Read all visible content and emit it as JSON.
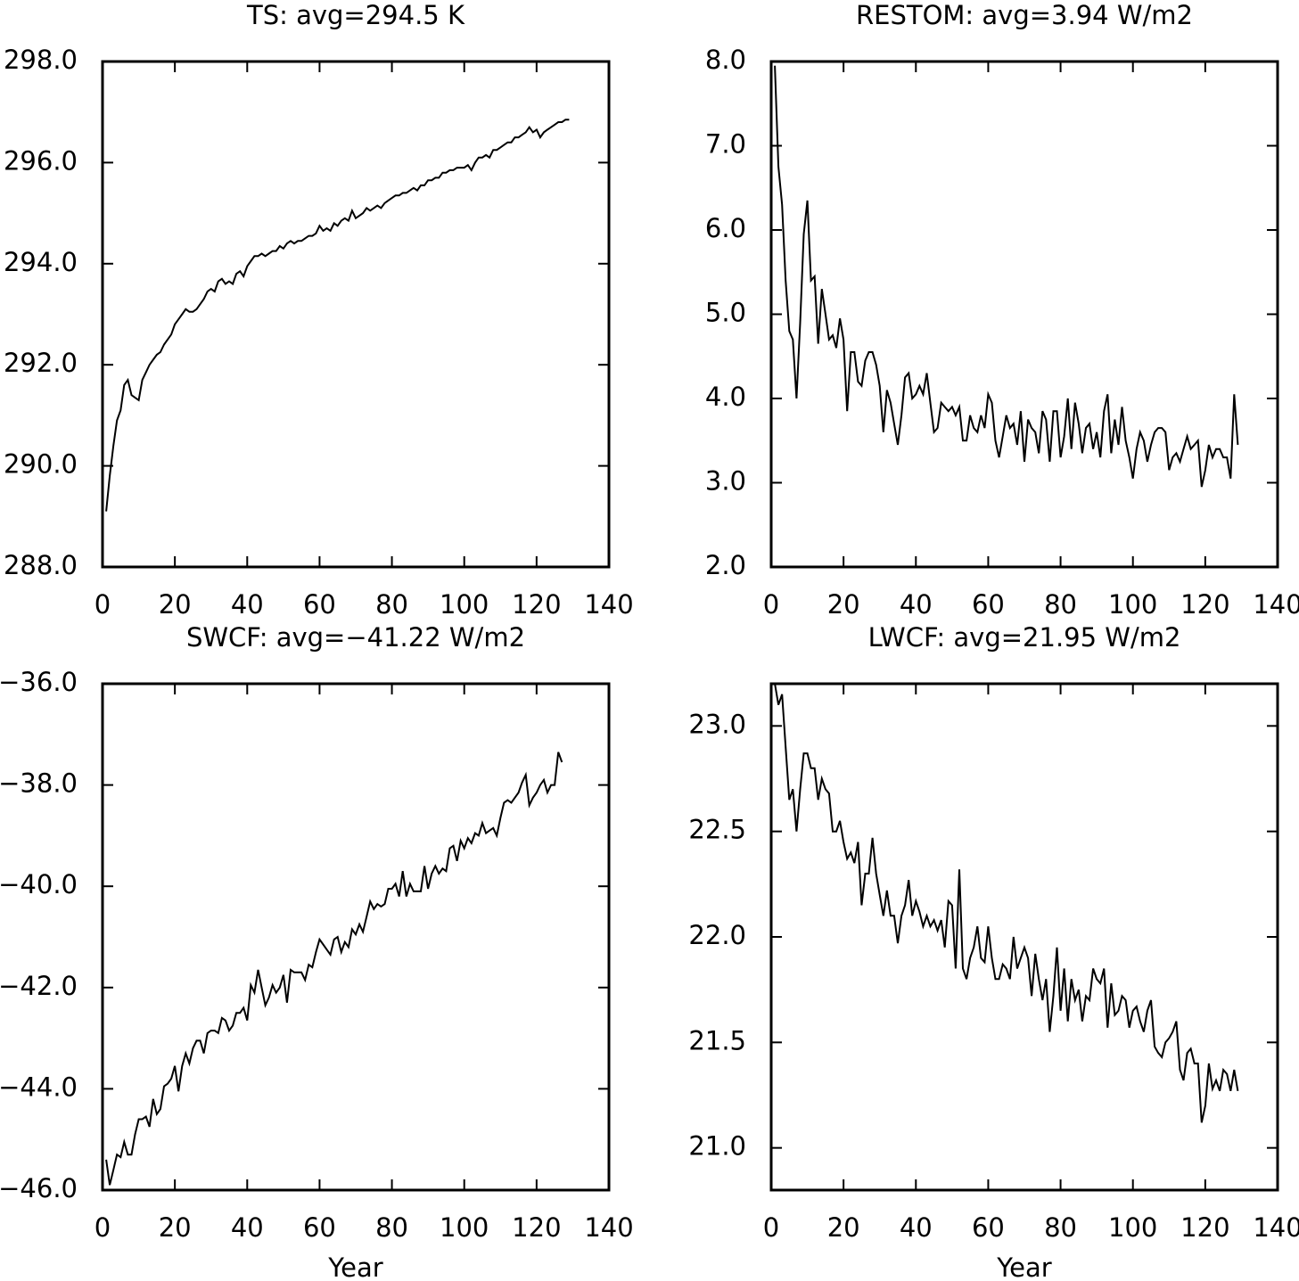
{
  "chart_data": [
    {
      "type": "line",
      "title": "TS: avg=294.5 K",
      "color": "#000000",
      "x": [
        1,
        2,
        3,
        4,
        5,
        6,
        7,
        8,
        9,
        10,
        11,
        12,
        13,
        14,
        15,
        16,
        17,
        18,
        19,
        20,
        21,
        22,
        23,
        24,
        25,
        26,
        27,
        28,
        29,
        30,
        31,
        32,
        33,
        34,
        35,
        36,
        37,
        38,
        39,
        40,
        41,
        42,
        43,
        44,
        45,
        46,
        47,
        48,
        49,
        50,
        51,
        52,
        53,
        54,
        55,
        56,
        57,
        58,
        59,
        60,
        61,
        62,
        63,
        64,
        65,
        66,
        67,
        68,
        69,
        70,
        71,
        72,
        73,
        74,
        75,
        76,
        77,
        78,
        79,
        80,
        81,
        82,
        83,
        84,
        85,
        86,
        87,
        88,
        89,
        90,
        91,
        92,
        93,
        94,
        95,
        96,
        97,
        98,
        99,
        100,
        101,
        102,
        103,
        104,
        105,
        106,
        107,
        108,
        109,
        110,
        111,
        112,
        113,
        114,
        115,
        116,
        117,
        118,
        119,
        120,
        121,
        122,
        123,
        124,
        125,
        126,
        127,
        128,
        129
      ],
      "values": [
        289.1,
        289.8,
        290.4,
        290.9,
        291.1,
        291.6,
        291.7,
        291.4,
        291.35,
        291.3,
        291.7,
        291.85,
        292.0,
        292.1,
        292.2,
        292.25,
        292.4,
        292.5,
        292.6,
        292.8,
        292.9,
        293.0,
        293.1,
        293.05,
        293.05,
        293.1,
        293.2,
        293.3,
        293.45,
        293.5,
        293.45,
        293.65,
        293.7,
        293.6,
        293.65,
        293.6,
        293.8,
        293.85,
        293.75,
        293.95,
        294.05,
        294.15,
        294.15,
        294.2,
        294.15,
        294.2,
        294.25,
        294.25,
        294.35,
        294.3,
        294.4,
        294.45,
        294.4,
        294.45,
        294.45,
        294.5,
        294.55,
        294.55,
        294.6,
        294.75,
        294.65,
        294.7,
        294.65,
        294.8,
        294.75,
        294.85,
        294.9,
        294.85,
        295.05,
        294.9,
        294.95,
        295.0,
        295.1,
        295.05,
        295.1,
        295.15,
        295.1,
        295.2,
        295.25,
        295.3,
        295.35,
        295.35,
        295.4,
        295.4,
        295.45,
        295.5,
        295.45,
        295.55,
        295.55,
        295.65,
        295.65,
        295.7,
        295.7,
        295.8,
        295.8,
        295.85,
        295.85,
        295.9,
        295.9,
        295.9,
        295.95,
        295.85,
        296.0,
        296.1,
        296.1,
        296.15,
        296.1,
        296.25,
        296.25,
        296.3,
        296.35,
        296.4,
        296.4,
        296.5,
        296.5,
        296.55,
        296.6,
        296.7,
        296.6,
        296.65,
        296.5,
        296.6,
        296.65,
        296.7,
        296.75,
        296.8,
        296.8,
        296.85,
        296.85
      ],
      "xlim": [
        0,
        140
      ],
      "xticks": [
        0,
        20,
        40,
        60,
        80,
        100,
        120,
        140
      ],
      "ylim": [
        288,
        298
      ],
      "yticks": [
        {
          "value": 288,
          "label": "288.0"
        },
        {
          "value": 290,
          "label": "290.0"
        },
        {
          "value": 292,
          "label": "292.0"
        },
        {
          "value": 294,
          "label": "294.0"
        },
        {
          "value": 296,
          "label": "296.0"
        },
        {
          "value": 298,
          "label": "298.0"
        }
      ]
    },
    {
      "type": "line",
      "title": "RESTOM: avg=3.94 W/m2",
      "color": "#000000",
      "x": [
        1,
        2,
        3,
        4,
        5,
        6,
        7,
        8,
        9,
        10,
        11,
        12,
        13,
        14,
        15,
        16,
        17,
        18,
        19,
        20,
        21,
        22,
        23,
        24,
        25,
        26,
        27,
        28,
        29,
        30,
        31,
        32,
        33,
        34,
        35,
        36,
        37,
        38,
        39,
        40,
        41,
        42,
        43,
        44,
        45,
        46,
        47,
        48,
        49,
        50,
        51,
        52,
        53,
        54,
        55,
        56,
        57,
        58,
        59,
        60,
        61,
        62,
        63,
        64,
        65,
        66,
        67,
        68,
        69,
        70,
        71,
        72,
        73,
        74,
        75,
        76,
        77,
        78,
        79,
        80,
        81,
        82,
        83,
        84,
        85,
        86,
        87,
        88,
        89,
        90,
        91,
        92,
        93,
        94,
        95,
        96,
        97,
        98,
        99,
        100,
        101,
        102,
        103,
        104,
        105,
        106,
        107,
        108,
        109,
        110,
        111,
        112,
        113,
        114,
        115,
        116,
        117,
        118,
        119,
        120,
        121,
        122,
        123,
        124,
        125,
        126,
        127,
        128,
        129
      ],
      "values": [
        7.95,
        6.75,
        6.3,
        5.4,
        4.8,
        4.7,
        4.0,
        4.9,
        5.95,
        6.35,
        5.4,
        5.45,
        4.65,
        5.3,
        5.0,
        4.7,
        4.75,
        4.6,
        4.95,
        4.7,
        3.85,
        4.55,
        4.55,
        4.2,
        4.15,
        4.45,
        4.55,
        4.55,
        4.4,
        4.15,
        3.6,
        4.1,
        3.95,
        3.7,
        3.45,
        3.8,
        4.25,
        4.3,
        4.0,
        4.05,
        4.15,
        4.05,
        4.3,
        3.95,
        3.6,
        3.65,
        3.95,
        3.9,
        3.85,
        3.9,
        3.8,
        3.9,
        3.5,
        3.5,
        3.8,
        3.65,
        3.6,
        3.8,
        3.65,
        4.05,
        3.95,
        3.5,
        3.3,
        3.55,
        3.8,
        3.65,
        3.7,
        3.45,
        3.85,
        3.25,
        3.75,
        3.65,
        3.6,
        3.35,
        3.85,
        3.75,
        3.25,
        3.85,
        3.85,
        3.3,
        3.55,
        4.0,
        3.4,
        3.95,
        3.7,
        3.35,
        3.65,
        3.7,
        3.4,
        3.6,
        3.3,
        3.85,
        4.05,
        3.35,
        3.75,
        3.45,
        3.9,
        3.5,
        3.3,
        3.05,
        3.4,
        3.6,
        3.5,
        3.25,
        3.45,
        3.6,
        3.65,
        3.65,
        3.6,
        3.15,
        3.3,
        3.35,
        3.25,
        3.4,
        3.55,
        3.4,
        3.45,
        3.5,
        2.95,
        3.15,
        3.45,
        3.3,
        3.4,
        3.4,
        3.3,
        3.3,
        3.05,
        4.05,
        3.45
      ],
      "xlim": [
        0,
        140
      ],
      "xticks": [
        0,
        20,
        40,
        60,
        80,
        100,
        120,
        140
      ],
      "ylim": [
        2,
        8
      ],
      "yticks": [
        {
          "value": 2,
          "label": "2.0"
        },
        {
          "value": 3,
          "label": "3.0"
        },
        {
          "value": 4,
          "label": "4.0"
        },
        {
          "value": 5,
          "label": "5.0"
        },
        {
          "value": 6,
          "label": "6.0"
        },
        {
          "value": 7,
          "label": "7.0"
        },
        {
          "value": 8,
          "label": "8.0"
        }
      ]
    },
    {
      "type": "line",
      "title": "SWCF: avg=−41.22 W/m2",
      "xlabel": "Year",
      "color": "#000000",
      "x": [
        1,
        2,
        3,
        4,
        5,
        6,
        7,
        8,
        9,
        10,
        11,
        12,
        13,
        14,
        15,
        16,
        17,
        18,
        19,
        20,
        21,
        22,
        23,
        24,
        25,
        26,
        27,
        28,
        29,
        30,
        31,
        32,
        33,
        34,
        35,
        36,
        37,
        38,
        39,
        40,
        41,
        42,
        43,
        44,
        45,
        46,
        47,
        48,
        49,
        50,
        51,
        52,
        53,
        54,
        55,
        56,
        57,
        58,
        59,
        60,
        61,
        62,
        63,
        64,
        65,
        66,
        67,
        68,
        69,
        70,
        71,
        72,
        73,
        74,
        75,
        76,
        77,
        78,
        79,
        80,
        81,
        82,
        83,
        84,
        85,
        86,
        87,
        88,
        89,
        90,
        91,
        92,
        93,
        94,
        95,
        96,
        97,
        98,
        99,
        100,
        101,
        102,
        103,
        104,
        105,
        106,
        107,
        108,
        109,
        110,
        111,
        112,
        113,
        114,
        115,
        116,
        117,
        118,
        119,
        120,
        121,
        122,
        123,
        124,
        125,
        126,
        127
      ],
      "values": [
        -45.4,
        -45.9,
        -45.6,
        -45.3,
        -45.35,
        -45.05,
        -45.3,
        -45.3,
        -44.9,
        -44.6,
        -44.6,
        -44.55,
        -44.75,
        -44.2,
        -44.5,
        -44.4,
        -43.95,
        -43.9,
        -43.8,
        -43.55,
        -44.05,
        -43.55,
        -43.3,
        -43.5,
        -43.2,
        -43.05,
        -43.05,
        -43.3,
        -42.9,
        -42.85,
        -42.85,
        -42.9,
        -42.6,
        -42.65,
        -42.85,
        -42.75,
        -42.5,
        -42.5,
        -42.4,
        -42.65,
        -41.95,
        -42.1,
        -41.65,
        -42.0,
        -42.35,
        -42.2,
        -41.95,
        -42.1,
        -42.0,
        -41.75,
        -42.3,
        -41.65,
        -41.7,
        -41.7,
        -41.7,
        -41.85,
        -41.55,
        -41.6,
        -41.3,
        -41.05,
        -41.15,
        -41.25,
        -41.35,
        -41.05,
        -41.0,
        -41.3,
        -41.1,
        -41.2,
        -40.85,
        -40.95,
        -40.75,
        -40.9,
        -40.6,
        -40.3,
        -40.45,
        -40.35,
        -40.4,
        -40.35,
        -40.05,
        -40.05,
        -39.95,
        -40.2,
        -39.7,
        -40.2,
        -39.95,
        -40.1,
        -40.1,
        -40.1,
        -39.6,
        -40.05,
        -39.75,
        -39.6,
        -39.75,
        -39.65,
        -39.7,
        -39.25,
        -39.2,
        -39.5,
        -39.1,
        -39.25,
        -39.05,
        -39.15,
        -38.95,
        -39.0,
        -38.75,
        -38.95,
        -38.9,
        -38.85,
        -39.0,
        -38.65,
        -38.35,
        -38.3,
        -38.35,
        -38.25,
        -38.15,
        -37.95,
        -37.8,
        -38.4,
        -38.25,
        -38.15,
        -38.0,
        -37.9,
        -38.15,
        -38.0,
        -38.0,
        -37.35,
        -37.55
      ],
      "xlim": [
        0,
        140
      ],
      "xticks": [
        0,
        20,
        40,
        60,
        80,
        100,
        120,
        140
      ],
      "ylim": [
        -46,
        -36
      ],
      "yticks": [
        {
          "value": -46,
          "label": "−46.0"
        },
        {
          "value": -44,
          "label": "−44.0"
        },
        {
          "value": -42,
          "label": "−42.0"
        },
        {
          "value": -40,
          "label": "−40.0"
        },
        {
          "value": -38,
          "label": "−38.0"
        },
        {
          "value": -36,
          "label": "−36.0"
        }
      ]
    },
    {
      "type": "line",
      "title": "LWCF: avg=21.95 W/m2",
      "xlabel": "Year",
      "color": "#000000",
      "x": [
        1,
        2,
        3,
        4,
        5,
        6,
        7,
        8,
        9,
        10,
        11,
        12,
        13,
        14,
        15,
        16,
        17,
        18,
        19,
        20,
        21,
        22,
        23,
        24,
        25,
        26,
        27,
        28,
        29,
        30,
        31,
        32,
        33,
        34,
        35,
        36,
        37,
        38,
        39,
        40,
        41,
        42,
        43,
        44,
        45,
        46,
        47,
        48,
        49,
        50,
        51,
        52,
        53,
        54,
        55,
        56,
        57,
        58,
        59,
        60,
        61,
        62,
        63,
        64,
        65,
        66,
        67,
        68,
        69,
        70,
        71,
        72,
        73,
        74,
        75,
        76,
        77,
        78,
        79,
        80,
        81,
        82,
        83,
        84,
        85,
        86,
        87,
        88,
        89,
        90,
        91,
        92,
        93,
        94,
        95,
        96,
        97,
        98,
        99,
        100,
        101,
        102,
        103,
        104,
        105,
        106,
        107,
        108,
        109,
        110,
        111,
        112,
        113,
        114,
        115,
        116,
        117,
        118,
        119,
        120,
        121,
        122,
        123,
        124,
        125,
        126,
        127,
        128,
        129
      ],
      "values": [
        23.2,
        23.1,
        23.15,
        22.9,
        22.65,
        22.7,
        22.5,
        22.7,
        22.87,
        22.87,
        22.8,
        22.8,
        22.65,
        22.75,
        22.7,
        22.68,
        22.5,
        22.5,
        22.55,
        22.45,
        22.37,
        22.4,
        22.35,
        22.45,
        22.15,
        22.3,
        22.3,
        22.47,
        22.3,
        22.2,
        22.1,
        22.22,
        22.1,
        22.1,
        21.97,
        22.1,
        22.15,
        22.27,
        22.1,
        22.17,
        22.12,
        22.05,
        22.1,
        22.05,
        22.08,
        22.03,
        22.08,
        21.95,
        22.17,
        22.15,
        21.85,
        22.32,
        21.85,
        21.8,
        21.9,
        21.95,
        22.05,
        21.9,
        21.88,
        22.05,
        21.9,
        21.8,
        21.8,
        21.87,
        21.85,
        21.8,
        22.0,
        21.85,
        21.9,
        21.95,
        21.9,
        21.72,
        21.92,
        21.8,
        21.7,
        21.8,
        21.55,
        21.72,
        21.95,
        21.65,
        21.85,
        21.6,
        21.8,
        21.7,
        21.75,
        21.6,
        21.72,
        21.7,
        21.85,
        21.8,
        21.78,
        21.85,
        21.57,
        21.78,
        21.63,
        21.65,
        21.72,
        21.7,
        21.57,
        21.65,
        21.67,
        21.6,
        21.55,
        21.65,
        21.7,
        21.48,
        21.45,
        21.43,
        21.5,
        21.52,
        21.55,
        21.6,
        21.37,
        21.32,
        21.45,
        21.47,
        21.4,
        21.4,
        21.12,
        21.2,
        21.4,
        21.28,
        21.32,
        21.27,
        21.37,
        21.35,
        21.27,
        21.37,
        21.27
      ],
      "xlim": [
        0,
        140
      ],
      "xticks": [
        0,
        20,
        40,
        60,
        80,
        100,
        120,
        140
      ],
      "ylim": [
        20.8,
        23.2
      ],
      "yticks": [
        {
          "value": 21,
          "label": "21.0"
        },
        {
          "value": 21.5,
          "label": "21.5"
        },
        {
          "value": 22,
          "label": "22.0"
        },
        {
          "value": 22.5,
          "label": "22.5"
        },
        {
          "value": 23,
          "label": "23.0"
        }
      ]
    }
  ]
}
